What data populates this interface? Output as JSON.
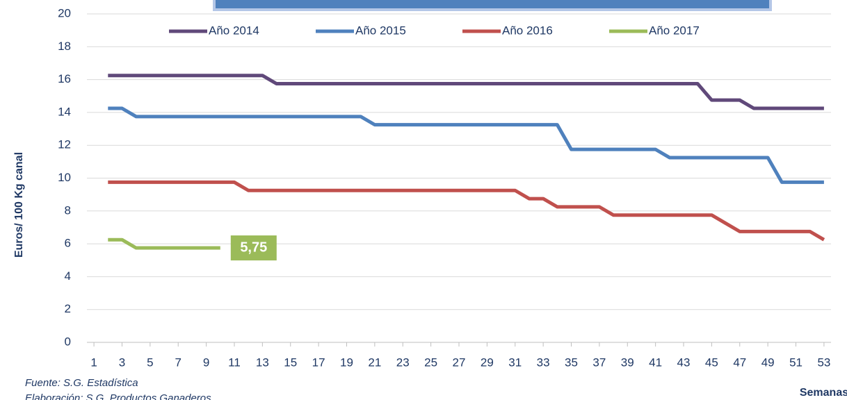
{
  "chart_data": {
    "type": "line",
    "y_label": "Euros/ 100 Kg canal",
    "x_label": "Semanas",
    "source": "Fuente: S.G. Estadística",
    "credit": "Elaboración: S.G. Productos Ganaderos",
    "x": [
      1,
      2,
      3,
      4,
      5,
      6,
      7,
      8,
      9,
      10,
      11,
      12,
      13,
      14,
      15,
      16,
      17,
      18,
      19,
      20,
      21,
      22,
      23,
      24,
      25,
      26,
      27,
      28,
      29,
      30,
      31,
      32,
      33,
      34,
      35,
      36,
      37,
      38,
      39,
      40,
      41,
      42,
      43,
      44,
      45,
      46,
      47,
      48,
      49,
      50,
      51,
      52,
      53
    ],
    "xlim": [
      0.5,
      53.5
    ],
    "xticks": [
      1,
      3,
      5,
      7,
      9,
      11,
      13,
      15,
      17,
      19,
      21,
      23,
      25,
      27,
      29,
      31,
      33,
      35,
      37,
      39,
      41,
      43,
      45,
      47,
      49,
      51,
      53
    ],
    "ylim": [
      0,
      20
    ],
    "yticks": [
      0,
      2,
      4,
      6,
      8,
      10,
      12,
      14,
      16,
      18,
      20
    ],
    "grid": true,
    "legend": "top",
    "series": [
      {
        "name": "Año 2014",
        "color": "#60497a",
        "values": [
          null,
          16.25,
          16.25,
          16.25,
          16.25,
          16.25,
          16.25,
          16.25,
          16.25,
          16.25,
          16.25,
          16.25,
          16.25,
          15.75,
          15.75,
          15.75,
          15.75,
          15.75,
          15.75,
          15.75,
          15.75,
          15.75,
          15.75,
          15.75,
          15.75,
          15.75,
          15.75,
          15.75,
          15.75,
          15.75,
          15.75,
          15.75,
          15.75,
          15.75,
          15.75,
          15.75,
          15.75,
          15.75,
          15.75,
          15.75,
          15.75,
          15.75,
          15.75,
          15.75,
          14.75,
          14.75,
          14.75,
          14.25,
          14.25,
          14.25,
          14.25,
          14.25,
          14.25
        ]
      },
      {
        "name": "Año 2015",
        "color": "#4f81bd",
        "values": [
          null,
          14.25,
          14.25,
          13.75,
          13.75,
          13.75,
          13.75,
          13.75,
          13.75,
          13.75,
          13.75,
          13.75,
          13.75,
          13.75,
          13.75,
          13.75,
          13.75,
          13.75,
          13.75,
          13.75,
          13.25,
          13.25,
          13.25,
          13.25,
          13.25,
          13.25,
          13.25,
          13.25,
          13.25,
          13.25,
          13.25,
          13.25,
          13.25,
          13.25,
          11.75,
          11.75,
          11.75,
          11.75,
          11.75,
          11.75,
          11.75,
          11.25,
          11.25,
          11.25,
          11.25,
          11.25,
          11.25,
          11.25,
          11.25,
          9.75,
          9.75,
          9.75,
          9.75
        ]
      },
      {
        "name": "Año 2016",
        "color": "#c0504d",
        "values": [
          null,
          9.75,
          9.75,
          9.75,
          9.75,
          9.75,
          9.75,
          9.75,
          9.75,
          9.75,
          9.75,
          9.25,
          9.25,
          9.25,
          9.25,
          9.25,
          9.25,
          9.25,
          9.25,
          9.25,
          9.25,
          9.25,
          9.25,
          9.25,
          9.25,
          9.25,
          9.25,
          9.25,
          9.25,
          9.25,
          9.25,
          8.75,
          8.75,
          8.25,
          8.25,
          8.25,
          8.25,
          7.75,
          7.75,
          7.75,
          7.75,
          7.75,
          7.75,
          7.75,
          7.75,
          7.25,
          6.75,
          6.75,
          6.75,
          6.75,
          6.75,
          6.75,
          6.25
        ]
      },
      {
        "name": "Año 2017",
        "color": "#9bbb59",
        "values": [
          null,
          6.25,
          6.25,
          5.75,
          5.75,
          5.75,
          5.75,
          5.75,
          5.75,
          5.75,
          null,
          null,
          null,
          null,
          null,
          null,
          null,
          null,
          null,
          null,
          null,
          null,
          null,
          null,
          null,
          null,
          null,
          null,
          null,
          null,
          null,
          null,
          null,
          null,
          null,
          null,
          null,
          null,
          null,
          null,
          null,
          null,
          null,
          null,
          null,
          null,
          null,
          null,
          null,
          null,
          null,
          null,
          null
        ],
        "value_labels": [
          null,
          null,
          null,
          null,
          null,
          null,
          null,
          null,
          null,
          "5,75",
          null,
          null,
          null,
          null,
          null,
          null,
          null,
          null,
          null,
          null,
          null,
          null,
          null,
          null,
          null,
          null,
          null,
          null,
          null,
          null,
          null,
          null,
          null,
          null,
          null,
          null,
          null,
          null,
          null,
          null,
          null,
          null,
          null,
          null,
          null,
          null,
          null,
          null,
          null,
          null,
          null,
          null,
          null
        ]
      }
    ]
  }
}
